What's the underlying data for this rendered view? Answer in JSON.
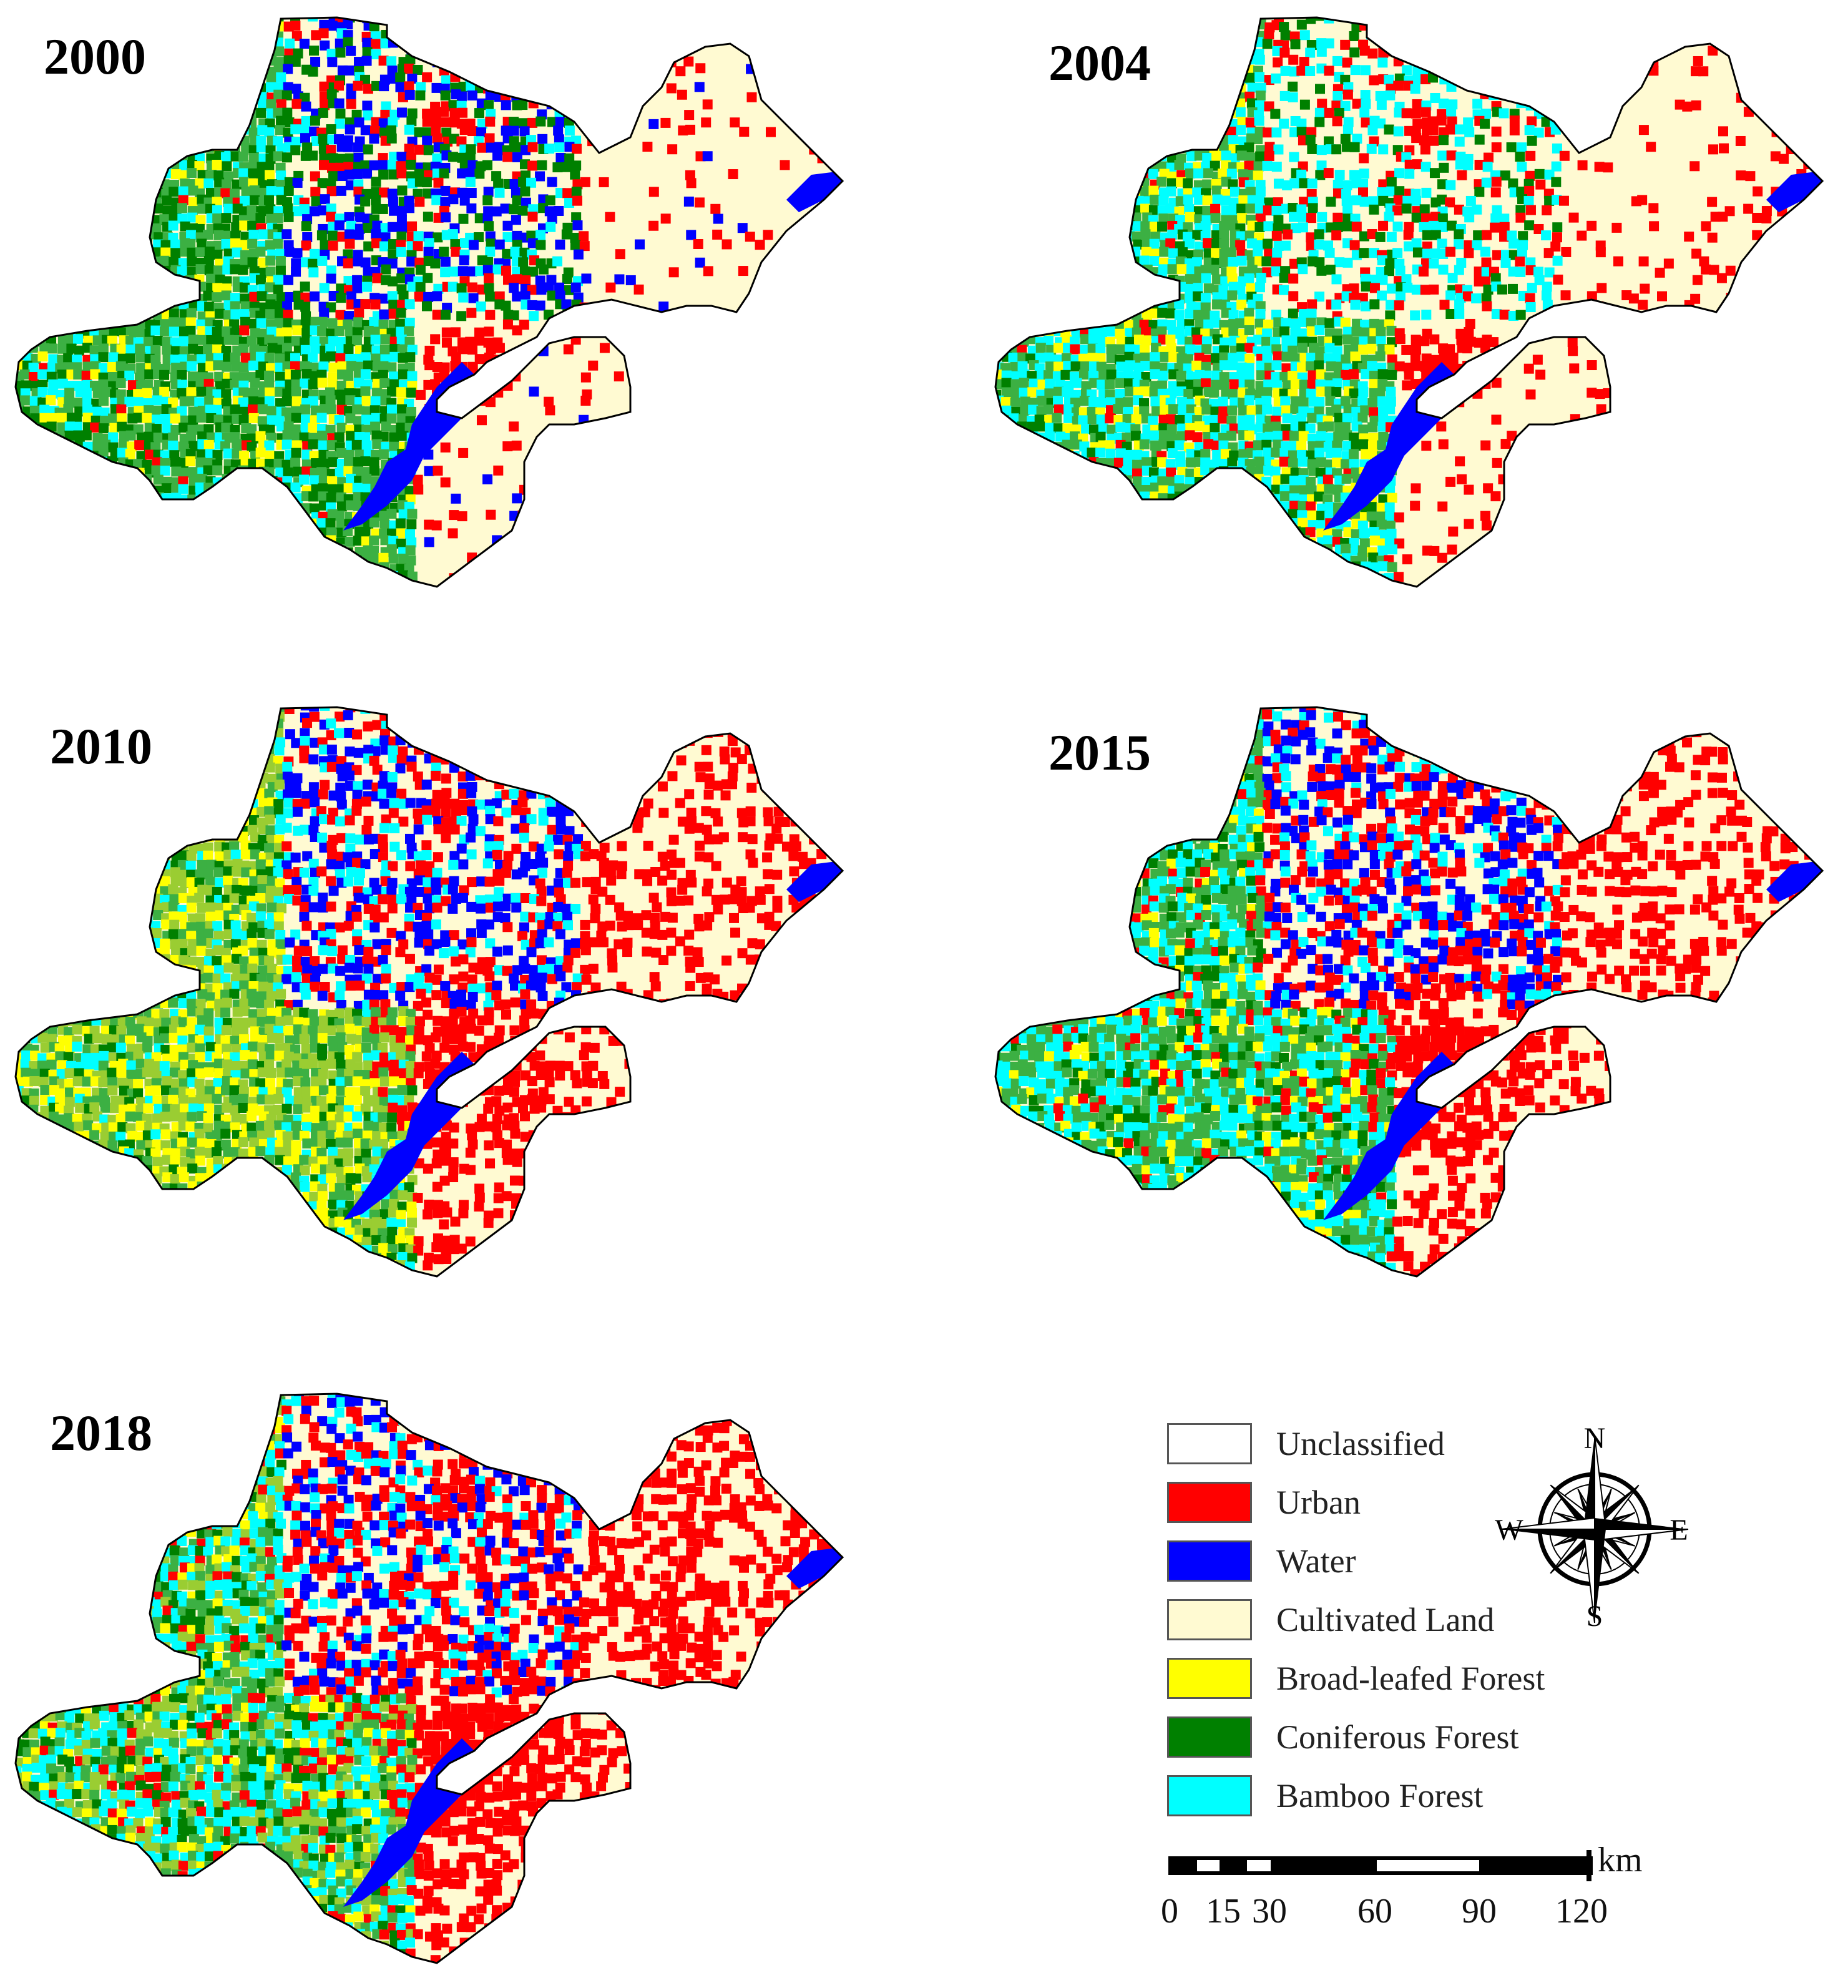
{
  "panels": [
    {
      "year": "2000"
    },
    {
      "year": "2004"
    },
    {
      "year": "2010"
    },
    {
      "year": "2015"
    },
    {
      "year": "2018"
    }
  ],
  "legend": [
    {
      "label": "Unclassified",
      "color": "#ffffff"
    },
    {
      "label": "Urban",
      "color": "#ff0000"
    },
    {
      "label": "Water",
      "color": "#0000ff"
    },
    {
      "label": "Cultivated Land",
      "color": "#fffad2"
    },
    {
      "label": "Broad-leafed Forest",
      "color": "#ffff00"
    },
    {
      "label": "Coniferous Forest",
      "color": "#008000"
    },
    {
      "label": "Bamboo Forest",
      "color": "#00ffff"
    }
  ],
  "compass": {
    "n": "N",
    "s": "S",
    "e": "E",
    "w": "W"
  },
  "scale": {
    "unit": "km",
    "ticks": [
      "0",
      "15",
      "30",
      "60",
      "90",
      "120"
    ]
  },
  "colors": {
    "outline": "#000000",
    "green_base": "#3cb043",
    "lime": "#9acd32"
  }
}
